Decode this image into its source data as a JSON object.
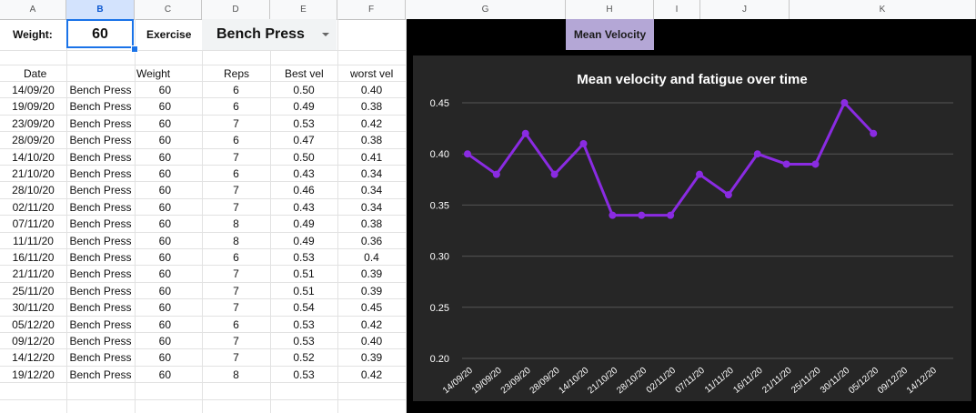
{
  "columns": [
    "A",
    "B",
    "C",
    "D",
    "E",
    "F",
    "G",
    "H",
    "I",
    "J",
    "K"
  ],
  "top": {
    "weight_label": "Weight:",
    "weight_value": "60",
    "exercise_label": "Exercise",
    "exercise_value": "Bench Press",
    "mean_velocity_button": "Mean Velocity"
  },
  "table": {
    "headers": [
      "Date",
      "",
      "Weight",
      "Reps",
      "Best vel",
      "worst vel"
    ],
    "rows": [
      [
        "14/09/20",
        "Bench Press",
        "60",
        "6",
        "0.50",
        "0.40"
      ],
      [
        "19/09/20",
        "Bench Press",
        "60",
        "6",
        "0.49",
        "0.38"
      ],
      [
        "23/09/20",
        "Bench Press",
        "60",
        "7",
        "0.53",
        "0.42"
      ],
      [
        "28/09/20",
        "Bench Press",
        "60",
        "6",
        "0.47",
        "0.38"
      ],
      [
        "14/10/20",
        "Bench Press",
        "60",
        "7",
        "0.50",
        "0.41"
      ],
      [
        "21/10/20",
        "Bench Press",
        "60",
        "6",
        "0.43",
        "0.34"
      ],
      [
        "28/10/20",
        "Bench Press",
        "60",
        "7",
        "0.46",
        "0.34"
      ],
      [
        "02/11/20",
        "Bench Press",
        "60",
        "7",
        "0.43",
        "0.34"
      ],
      [
        "07/11/20",
        "Bench Press",
        "60",
        "8",
        "0.49",
        "0.38"
      ],
      [
        "11/11/20",
        "Bench Press",
        "60",
        "8",
        "0.49",
        "0.36"
      ],
      [
        "16/11/20",
        "Bench Press",
        "60",
        "6",
        "0.53",
        "0.4"
      ],
      [
        "21/11/20",
        "Bench Press",
        "60",
        "7",
        "0.51",
        "0.39"
      ],
      [
        "25/11/20",
        "Bench Press",
        "60",
        "7",
        "0.51",
        "0.39"
      ],
      [
        "30/11/20",
        "Bench Press",
        "60",
        "7",
        "0.54",
        "0.45"
      ],
      [
        "05/12/20",
        "Bench Press",
        "60",
        "6",
        "0.53",
        "0.42"
      ],
      [
        "09/12/20",
        "Bench Press",
        "60",
        "7",
        "0.53",
        "0.40"
      ],
      [
        "14/12/20",
        "Bench Press",
        "60",
        "7",
        "0.52",
        "0.39"
      ],
      [
        "19/12/20",
        "Bench Press",
        "60",
        "8",
        "0.53",
        "0.42"
      ]
    ]
  },
  "colors": {
    "line": "#8a2be2",
    "chart_bg": "#262626",
    "grid": "#555555",
    "text": "#ffffff",
    "button_bg": "#b4a7d6"
  },
  "chart_data": {
    "type": "line",
    "title": "Mean velocity and fatigue over time",
    "xlabel": "",
    "ylabel": "",
    "ylim": [
      0.2,
      0.45
    ],
    "yticks": [
      "0.20",
      "0.25",
      "0.30",
      "0.35",
      "0.40",
      "0.45"
    ],
    "categories": [
      "14/09/20",
      "19/09/20",
      "23/09/20",
      "28/09/20",
      "14/10/20",
      "21/10/20",
      "28/10/20",
      "02/11/20",
      "07/11/20",
      "11/11/20",
      "16/11/20",
      "21/11/20",
      "25/11/20",
      "30/11/20",
      "05/12/20",
      "09/12/20",
      "14/12/20"
    ],
    "series": [
      {
        "values": [
          0.4,
          0.38,
          0.42,
          0.38,
          0.41,
          0.34,
          0.34,
          0.34,
          0.38,
          0.36,
          0.4,
          0.39,
          0.39,
          0.45,
          0.42,
          null,
          null
        ]
      }
    ],
    "grid": true
  }
}
